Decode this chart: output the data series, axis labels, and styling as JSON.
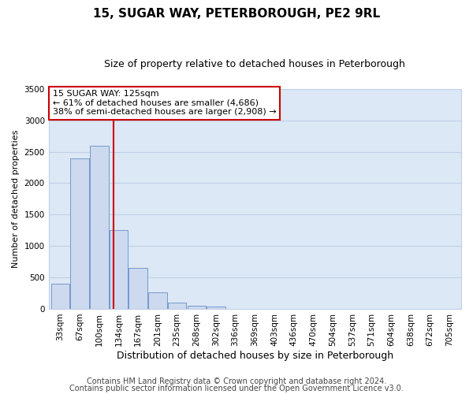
{
  "title": "15, SUGAR WAY, PETERBOROUGH, PE2 9RL",
  "subtitle": "Size of property relative to detached houses in Peterborough",
  "xlabel": "Distribution of detached houses by size in Peterborough",
  "ylabel": "Number of detached properties",
  "bar_labels": [
    "33sqm",
    "67sqm",
    "100sqm",
    "134sqm",
    "167sqm",
    "201sqm",
    "235sqm",
    "268sqm",
    "302sqm",
    "336sqm",
    "369sqm",
    "403sqm",
    "436sqm",
    "470sqm",
    "504sqm",
    "537sqm",
    "571sqm",
    "604sqm",
    "638sqm",
    "672sqm",
    "705sqm"
  ],
  "bar_values": [
    400,
    2400,
    2600,
    1250,
    650,
    260,
    100,
    55,
    35,
    0,
    0,
    0,
    0,
    0,
    0,
    0,
    0,
    0,
    0,
    0,
    0
  ],
  "bar_color": "#ccd9ee",
  "bar_edge_color": "#7799cc",
  "vline_x": 2.72,
  "vline_color": "#cc0000",
  "ylim": [
    0,
    3500
  ],
  "yticks": [
    0,
    500,
    1000,
    1500,
    2000,
    2500,
    3000,
    3500
  ],
  "annotation_box_text": "15 SUGAR WAY: 125sqm\n← 61% of detached houses are smaller (4,686)\n38% of semi-detached houses are larger (2,908) →",
  "annotation_box_color": "#ffffff",
  "annotation_box_edge_color": "#cc0000",
  "footer_line1": "Contains HM Land Registry data © Crown copyright and database right 2024.",
  "footer_line2": "Contains public sector information licensed under the Open Government Licence v3.0.",
  "background_color": "#ffffff",
  "plot_bg_color": "#dce8f5",
  "grid_color": "#c0d0e8",
  "title_fontsize": 11,
  "subtitle_fontsize": 9,
  "xlabel_fontsize": 9,
  "ylabel_fontsize": 8,
  "tick_fontsize": 7.5,
  "annotation_fontsize": 8,
  "footer_fontsize": 7
}
